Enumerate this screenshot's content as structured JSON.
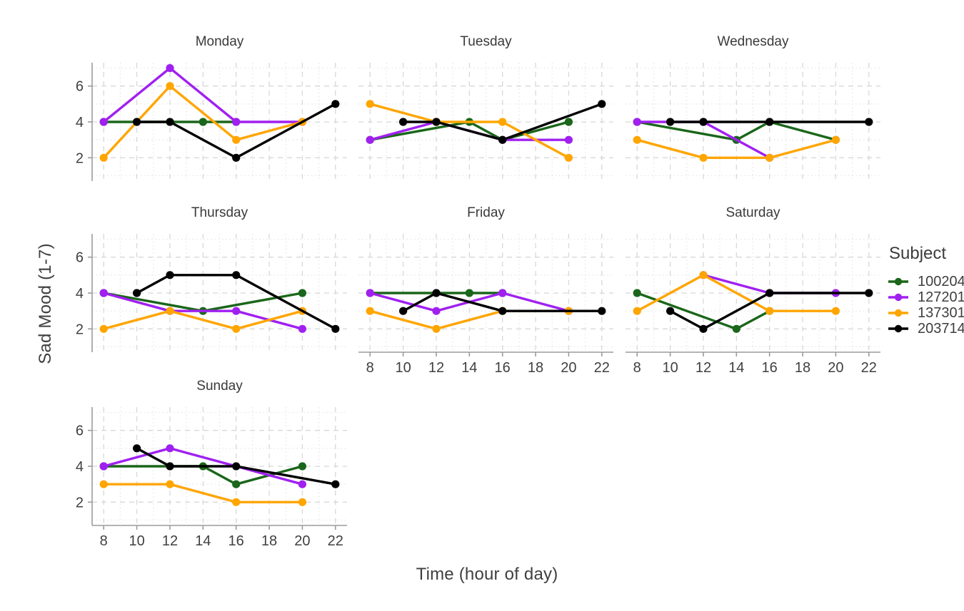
{
  "chart_data": {
    "type": "line",
    "title": "",
    "xlabel": "Time (hour of day)",
    "ylabel": "Sad Mood (1-7)",
    "legend_title": "Subject",
    "legend_position": "right",
    "grid": "major-dashed-minor-dotted",
    "x_ticks": [
      8,
      10,
      12,
      14,
      16,
      18,
      20,
      22
    ],
    "x_minor_ticks": [
      9,
      11,
      13,
      15,
      17,
      19,
      21
    ],
    "y_ticks": [
      2,
      4,
      6
    ],
    "y_minor_ticks": [
      1,
      3,
      5,
      7
    ],
    "xlim": [
      7.3,
      22.7
    ],
    "ylim": [
      0.7,
      7.3
    ],
    "facet_order": [
      "Monday",
      "Tuesday",
      "Wednesday",
      "Thursday",
      "Friday",
      "Saturday",
      "Sunday"
    ],
    "subjects": [
      {
        "id": "100204",
        "color": "#1a661a"
      },
      {
        "id": "127201",
        "color": "#a020f0"
      },
      {
        "id": "137301",
        "color": "#ffa500"
      },
      {
        "id": "203714",
        "color": "#000000"
      }
    ],
    "facets": [
      {
        "day": "Monday",
        "series": {
          "100204": [
            [
              8,
              4
            ],
            [
              14,
              4
            ],
            [
              16,
              4
            ]
          ],
          "127201": [
            [
              8,
              4
            ],
            [
              12,
              7
            ],
            [
              16,
              4
            ],
            [
              20,
              4
            ]
          ],
          "137301": [
            [
              8,
              2
            ],
            [
              12,
              6
            ],
            [
              16,
              3
            ],
            [
              20,
              4
            ]
          ],
          "203714": [
            [
              10,
              4
            ],
            [
              12,
              4
            ],
            [
              16,
              2
            ],
            [
              22,
              5
            ]
          ]
        }
      },
      {
        "day": "Tuesday",
        "series": {
          "100204": [
            [
              8,
              3
            ],
            [
              14,
              4
            ],
            [
              16,
              3
            ],
            [
              20,
              4
            ]
          ],
          "127201": [
            [
              8,
              3
            ],
            [
              12,
              4
            ],
            [
              16,
              3
            ],
            [
              20,
              3
            ]
          ],
          "137301": [
            [
              8,
              5
            ],
            [
              12,
              4
            ],
            [
              16,
              4
            ],
            [
              20,
              2
            ]
          ],
          "203714": [
            [
              10,
              4
            ],
            [
              12,
              4
            ],
            [
              16,
              3
            ],
            [
              22,
              5
            ]
          ]
        }
      },
      {
        "day": "Wednesday",
        "series": {
          "100204": [
            [
              8,
              4
            ],
            [
              14,
              3
            ],
            [
              16,
              4
            ],
            [
              20,
              3
            ]
          ],
          "127201": [
            [
              8,
              4
            ],
            [
              12,
              4
            ],
            [
              16,
              2
            ]
          ],
          "137301": [
            [
              8,
              3
            ],
            [
              12,
              2
            ],
            [
              16,
              2
            ],
            [
              20,
              3
            ]
          ],
          "203714": [
            [
              10,
              4
            ],
            [
              12,
              4
            ],
            [
              16,
              4
            ],
            [
              22,
              4
            ]
          ]
        }
      },
      {
        "day": "Thursday",
        "series": {
          "100204": [
            [
              8,
              4
            ],
            [
              14,
              3
            ],
            [
              20,
              4
            ]
          ],
          "127201": [
            [
              8,
              4
            ],
            [
              12,
              3
            ],
            [
              16,
              3
            ],
            [
              20,
              2
            ]
          ],
          "137301": [
            [
              8,
              2
            ],
            [
              12,
              3
            ],
            [
              16,
              2
            ],
            [
              20,
              3
            ]
          ],
          "203714": [
            [
              10,
              4
            ],
            [
              12,
              5
            ],
            [
              16,
              5
            ],
            [
              22,
              2
            ]
          ]
        }
      },
      {
        "day": "Friday",
        "series": {
          "100204": [
            [
              8,
              4
            ],
            [
              14,
              4
            ],
            [
              16,
              4
            ]
          ],
          "127201": [
            [
              8,
              4
            ],
            [
              12,
              3
            ],
            [
              16,
              4
            ],
            [
              20,
              3
            ]
          ],
          "137301": [
            [
              8,
              3
            ],
            [
              12,
              2
            ],
            [
              16,
              3
            ],
            [
              20,
              3
            ]
          ],
          "203714": [
            [
              10,
              3
            ],
            [
              12,
              4
            ],
            [
              16,
              3
            ],
            [
              22,
              3
            ]
          ]
        }
      },
      {
        "day": "Saturday",
        "series": {
          "100204": [
            [
              8,
              4
            ],
            [
              14,
              2
            ],
            [
              16,
              3
            ]
          ],
          "127201": [
            [
              12,
              5
            ],
            [
              16,
              4
            ],
            [
              20,
              4
            ]
          ],
          "137301": [
            [
              8,
              3
            ],
            [
              12,
              5
            ],
            [
              16,
              3
            ],
            [
              20,
              3
            ]
          ],
          "203714": [
            [
              10,
              3
            ],
            [
              12,
              2
            ],
            [
              16,
              4
            ],
            [
              22,
              4
            ]
          ]
        }
      },
      {
        "day": "Sunday",
        "series": {
          "100204": [
            [
              8,
              4
            ],
            [
              14,
              4
            ],
            [
              16,
              3
            ],
            [
              20,
              4
            ]
          ],
          "127201": [
            [
              8,
              4
            ],
            [
              12,
              5
            ],
            [
              20,
              3
            ]
          ],
          "137301": [
            [
              8,
              3
            ],
            [
              12,
              3
            ],
            [
              16,
              2
            ],
            [
              20,
              2
            ]
          ],
          "203714": [
            [
              10,
              5
            ],
            [
              12,
              4
            ],
            [
              16,
              4
            ],
            [
              22,
              3
            ]
          ]
        }
      }
    ],
    "style_colors": {
      "background": "#ffffff",
      "grid_major": "#d8d8d8",
      "grid_minor": "#e5e5e5",
      "axis_line": "#9b9b9b",
      "tick_mark": "#9b9b9b",
      "tick_text": "#404040",
      "strip_text": "#3a3a3a"
    }
  }
}
